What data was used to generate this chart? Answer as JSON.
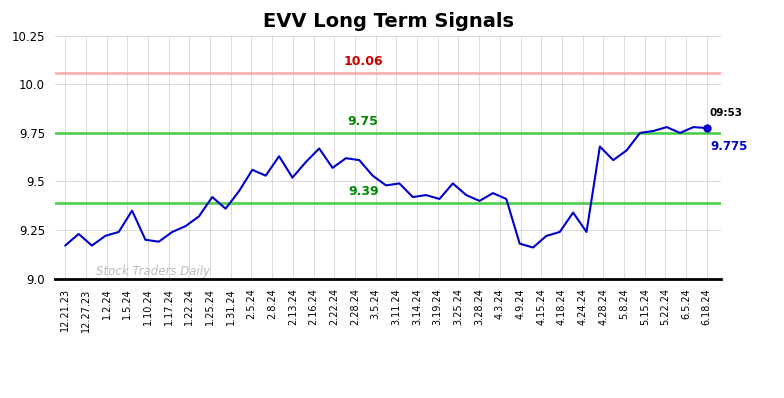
{
  "title": "EVV Long Term Signals",
  "x_labels": [
    "12.21.23",
    "12.27.23",
    "1.2.24",
    "1.5.24",
    "1.10.24",
    "1.17.24",
    "1.22.24",
    "1.25.24",
    "1.31.24",
    "2.5.24",
    "2.8.24",
    "2.13.24",
    "2.16.24",
    "2.22.24",
    "2.28.24",
    "3.5.24",
    "3.11.24",
    "3.14.24",
    "3.19.24",
    "3.25.24",
    "3.28.24",
    "4.3.24",
    "4.9.24",
    "4.15.24",
    "4.18.24",
    "4.24.24",
    "4.28.24",
    "5.8.24",
    "5.15.24",
    "5.22.24",
    "6.5.24",
    "6.18.24"
  ],
  "y_values": [
    9.17,
    9.23,
    9.17,
    9.22,
    9.24,
    9.35,
    9.2,
    9.19,
    9.24,
    9.27,
    9.32,
    9.42,
    9.36,
    9.45,
    9.56,
    9.53,
    9.63,
    9.52,
    9.6,
    9.67,
    9.57,
    9.62,
    9.61,
    9.53,
    9.48,
    9.49,
    9.42,
    9.43,
    9.41,
    9.49,
    9.43,
    9.4,
    9.44,
    9.41,
    9.18,
    9.16,
    9.22,
    9.24,
    9.34,
    9.24,
    9.68,
    9.61,
    9.66,
    9.75,
    9.76,
    9.78,
    9.75,
    9.78,
    9.775
  ],
  "hline_red": 10.06,
  "hline_green1": 9.75,
  "hline_green2": 9.39,
  "red_label": "10.06",
  "green1_label": "9.75",
  "green2_label": "9.39",
  "last_price_str": "9.775",
  "last_time": "09:53",
  "ylim": [
    9.0,
    10.25
  ],
  "yticks": [
    9.0,
    9.25,
    9.5,
    9.75,
    10.0,
    10.25
  ],
  "line_color": "#0000cc",
  "red_line_color": "#ffaaaa",
  "green_line_color": "#44cc44",
  "watermark": "Stock Traders Daily",
  "background_color": "#ffffff",
  "grid_color": "#cccccc",
  "title_fontsize": 14,
  "annotation_red_color": "#cc0000",
  "annotation_green_color": "#008800"
}
